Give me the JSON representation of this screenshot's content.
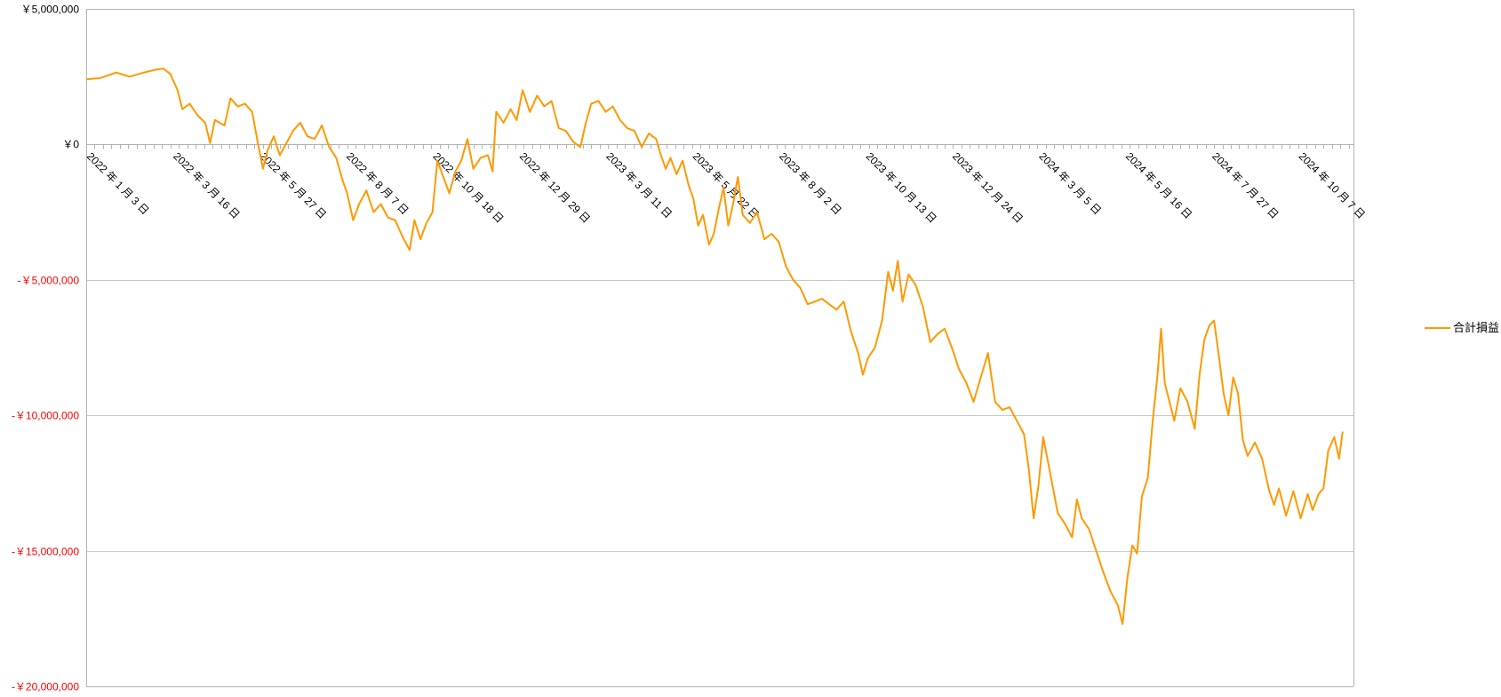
{
  "chart_data": {
    "type": "line",
    "title": "",
    "xlabel": "",
    "ylabel": "",
    "grid": true,
    "legend_position": "right",
    "ylim": [
      -20000000,
      5000000
    ],
    "xlim": [
      "2022-01-03",
      "2024-11-22"
    ],
    "y_ticks": [
      {
        "value": 5000000,
        "label": "￥5,000,000"
      },
      {
        "value": 0,
        "label": "￥0"
      },
      {
        "value": -5000000,
        "label": "-￥5,000,000"
      },
      {
        "value": -10000000,
        "label": "-￥10,000,000"
      },
      {
        "value": -15000000,
        "label": "-￥15,000,000"
      },
      {
        "value": -20000000,
        "label": "-￥20,000,000"
      }
    ],
    "x_ticks": [
      {
        "date": "2022-01-03",
        "label": "2022 年 1 月 3 日"
      },
      {
        "date": "2022-03-16",
        "label": "2022 年 3 月 16 日"
      },
      {
        "date": "2022-05-27",
        "label": "2022 年 5 月 27 日"
      },
      {
        "date": "2022-08-07",
        "label": "2022 年 8 月 7 日"
      },
      {
        "date": "2022-10-18",
        "label": "2022 年 10 月 18 日"
      },
      {
        "date": "2022-12-29",
        "label": "2022 年 12 月 29 日"
      },
      {
        "date": "2023-03-11",
        "label": "2023 年 3 月 11 日"
      },
      {
        "date": "2023-05-22",
        "label": "2023 年 5 月 22 日"
      },
      {
        "date": "2023-08-02",
        "label": "2023 年 8 月 2 日"
      },
      {
        "date": "2023-10-13",
        "label": "2023 年 10 月 13 日"
      },
      {
        "date": "2023-12-24",
        "label": "2023 年 12 月 24 日"
      },
      {
        "date": "2024-03-05",
        "label": "2024 年 3 月 5 日"
      },
      {
        "date": "2024-05-16",
        "label": "2024 年 5 月 16 日"
      },
      {
        "date": "2024-07-27",
        "label": "2024 年 7 月 27 日"
      },
      {
        "date": "2024-10-07",
        "label": "2024 年 10 月 7 日"
      }
    ],
    "series": [
      {
        "name": "合計損益",
        "color": "#FF9900",
        "points": [
          [
            "2022-01-03",
            2400000
          ],
          [
            "2022-01-15",
            2450000
          ],
          [
            "2022-01-28",
            2650000
          ],
          [
            "2022-02-08",
            2500000
          ],
          [
            "2022-02-20",
            2650000
          ],
          [
            "2022-03-01",
            2750000
          ],
          [
            "2022-03-08",
            2800000
          ],
          [
            "2022-03-14",
            2600000
          ],
          [
            "2022-03-20",
            2000000
          ],
          [
            "2022-03-24",
            1300000
          ],
          [
            "2022-03-30",
            1500000
          ],
          [
            "2022-04-06",
            1050000
          ],
          [
            "2022-04-12",
            800000
          ],
          [
            "2022-04-16",
            50000
          ],
          [
            "2022-04-20",
            900000
          ],
          [
            "2022-04-28",
            700000
          ],
          [
            "2022-05-03",
            1700000
          ],
          [
            "2022-05-09",
            1400000
          ],
          [
            "2022-05-15",
            1500000
          ],
          [
            "2022-05-21",
            1200000
          ],
          [
            "2022-05-26",
            0
          ],
          [
            "2022-05-30",
            -900000
          ],
          [
            "2022-06-03",
            -200000
          ],
          [
            "2022-06-08",
            300000
          ],
          [
            "2022-06-13",
            -400000
          ],
          [
            "2022-06-18",
            0
          ],
          [
            "2022-06-24",
            500000
          ],
          [
            "2022-06-30",
            800000
          ],
          [
            "2022-07-06",
            300000
          ],
          [
            "2022-07-12",
            200000
          ],
          [
            "2022-07-18",
            700000
          ],
          [
            "2022-07-24",
            -100000
          ],
          [
            "2022-07-30",
            -500000
          ],
          [
            "2022-08-04",
            -1300000
          ],
          [
            "2022-08-08",
            -1800000
          ],
          [
            "2022-08-13",
            -2800000
          ],
          [
            "2022-08-18",
            -2200000
          ],
          [
            "2022-08-24",
            -1700000
          ],
          [
            "2022-08-30",
            -2500000
          ],
          [
            "2022-09-05",
            -2200000
          ],
          [
            "2022-09-11",
            -2700000
          ],
          [
            "2022-09-17",
            -2800000
          ],
          [
            "2022-09-23",
            -3400000
          ],
          [
            "2022-09-29",
            -3900000
          ],
          [
            "2022-10-03",
            -2800000
          ],
          [
            "2022-10-08",
            -3500000
          ],
          [
            "2022-10-13",
            -2900000
          ],
          [
            "2022-10-18",
            -2500000
          ],
          [
            "2022-10-22",
            -600000
          ],
          [
            "2022-10-27",
            -1200000
          ],
          [
            "2022-11-01",
            -1800000
          ],
          [
            "2022-11-06",
            -1000000
          ],
          [
            "2022-11-11",
            -600000
          ],
          [
            "2022-11-16",
            200000
          ],
          [
            "2022-11-21",
            -900000
          ],
          [
            "2022-11-27",
            -500000
          ],
          [
            "2022-12-03",
            -400000
          ],
          [
            "2022-12-07",
            -1000000
          ],
          [
            "2022-12-10",
            1200000
          ],
          [
            "2022-12-16",
            800000
          ],
          [
            "2022-12-22",
            1300000
          ],
          [
            "2022-12-27",
            900000
          ],
          [
            "2023-01-01",
            2000000
          ],
          [
            "2023-01-07",
            1200000
          ],
          [
            "2023-01-13",
            1800000
          ],
          [
            "2023-01-19",
            1400000
          ],
          [
            "2023-01-25",
            1600000
          ],
          [
            "2023-01-31",
            600000
          ],
          [
            "2023-02-06",
            500000
          ],
          [
            "2023-02-12",
            100000
          ],
          [
            "2023-02-18",
            -100000
          ],
          [
            "2023-02-22",
            700000
          ],
          [
            "2023-02-27",
            1500000
          ],
          [
            "2023-03-05",
            1600000
          ],
          [
            "2023-03-11",
            1200000
          ],
          [
            "2023-03-17",
            1400000
          ],
          [
            "2023-03-23",
            900000
          ],
          [
            "2023-03-29",
            600000
          ],
          [
            "2023-04-04",
            500000
          ],
          [
            "2023-04-10",
            -100000
          ],
          [
            "2023-04-16",
            400000
          ],
          [
            "2023-04-22",
            200000
          ],
          [
            "2023-04-26",
            -400000
          ],
          [
            "2023-04-30",
            -900000
          ],
          [
            "2023-05-04",
            -500000
          ],
          [
            "2023-05-09",
            -1100000
          ],
          [
            "2023-05-14",
            -600000
          ],
          [
            "2023-05-19",
            -1500000
          ],
          [
            "2023-05-23",
            -2000000
          ],
          [
            "2023-05-27",
            -3000000
          ],
          [
            "2023-05-31",
            -2600000
          ],
          [
            "2023-06-05",
            -3700000
          ],
          [
            "2023-06-09",
            -3300000
          ],
          [
            "2023-06-13",
            -2400000
          ],
          [
            "2023-06-17",
            -1600000
          ],
          [
            "2023-06-21",
            -3000000
          ],
          [
            "2023-06-25",
            -2200000
          ],
          [
            "2023-06-29",
            -1200000
          ],
          [
            "2023-07-03",
            -2600000
          ],
          [
            "2023-07-09",
            -2900000
          ],
          [
            "2023-07-15",
            -2500000
          ],
          [
            "2023-07-21",
            -3500000
          ],
          [
            "2023-07-27",
            -3300000
          ],
          [
            "2023-08-02",
            -3600000
          ],
          [
            "2023-08-08",
            -4500000
          ],
          [
            "2023-08-14",
            -5000000
          ],
          [
            "2023-08-20",
            -5300000
          ],
          [
            "2023-08-26",
            -5900000
          ],
          [
            "2023-09-01",
            -5800000
          ],
          [
            "2023-09-07",
            -5700000
          ],
          [
            "2023-09-13",
            -5900000
          ],
          [
            "2023-09-19",
            -6100000
          ],
          [
            "2023-09-25",
            -5800000
          ],
          [
            "2023-10-01",
            -6900000
          ],
          [
            "2023-10-07",
            -7700000
          ],
          [
            "2023-10-11",
            -8500000
          ],
          [
            "2023-10-15",
            -7900000
          ],
          [
            "2023-10-21",
            -7500000
          ],
          [
            "2023-10-27",
            -6500000
          ],
          [
            "2023-11-01",
            -4700000
          ],
          [
            "2023-11-05",
            -5400000
          ],
          [
            "2023-11-09",
            -4300000
          ],
          [
            "2023-11-13",
            -5800000
          ],
          [
            "2023-11-18",
            -4800000
          ],
          [
            "2023-11-24",
            -5200000
          ],
          [
            "2023-11-30",
            -6000000
          ],
          [
            "2023-12-06",
            -7300000
          ],
          [
            "2023-12-12",
            -7000000
          ],
          [
            "2023-12-18",
            -6800000
          ],
          [
            "2023-12-24",
            -7500000
          ],
          [
            "2023-12-30",
            -8300000
          ],
          [
            "2024-01-05",
            -8800000
          ],
          [
            "2024-01-11",
            -9500000
          ],
          [
            "2024-01-17",
            -8600000
          ],
          [
            "2024-01-23",
            -7700000
          ],
          [
            "2024-01-29",
            -9500000
          ],
          [
            "2024-02-04",
            -9800000
          ],
          [
            "2024-02-10",
            -9700000
          ],
          [
            "2024-02-16",
            -10200000
          ],
          [
            "2024-02-22",
            -10700000
          ],
          [
            "2024-02-26",
            -12000000
          ],
          [
            "2024-03-01",
            -13800000
          ],
          [
            "2024-03-05",
            -12600000
          ],
          [
            "2024-03-09",
            -10800000
          ],
          [
            "2024-03-15",
            -12200000
          ],
          [
            "2024-03-21",
            -13600000
          ],
          [
            "2024-03-27",
            -14000000
          ],
          [
            "2024-04-02",
            -14500000
          ],
          [
            "2024-04-06",
            -13100000
          ],
          [
            "2024-04-10",
            -13800000
          ],
          [
            "2024-04-16",
            -14200000
          ],
          [
            "2024-04-22",
            -15000000
          ],
          [
            "2024-04-28",
            -15800000
          ],
          [
            "2024-05-04",
            -16500000
          ],
          [
            "2024-05-10",
            -17000000
          ],
          [
            "2024-05-14",
            -17700000
          ],
          [
            "2024-05-18",
            -16000000
          ],
          [
            "2024-05-22",
            -14800000
          ],
          [
            "2024-05-26",
            -15100000
          ],
          [
            "2024-05-30",
            -13000000
          ],
          [
            "2024-06-04",
            -12300000
          ],
          [
            "2024-06-08",
            -10200000
          ],
          [
            "2024-06-12",
            -8500000
          ],
          [
            "2024-06-15",
            -6800000
          ],
          [
            "2024-06-18",
            -8800000
          ],
          [
            "2024-06-22",
            -9500000
          ],
          [
            "2024-06-26",
            -10200000
          ],
          [
            "2024-07-01",
            -9000000
          ],
          [
            "2024-07-07",
            -9500000
          ],
          [
            "2024-07-13",
            -10500000
          ],
          [
            "2024-07-17",
            -8500000
          ],
          [
            "2024-07-21",
            -7200000
          ],
          [
            "2024-07-25",
            -6700000
          ],
          [
            "2024-07-29",
            -6500000
          ],
          [
            "2024-08-02",
            -7800000
          ],
          [
            "2024-08-06",
            -9200000
          ],
          [
            "2024-08-10",
            -10000000
          ],
          [
            "2024-08-14",
            -8600000
          ],
          [
            "2024-08-18",
            -9200000
          ],
          [
            "2024-08-22",
            -10900000
          ],
          [
            "2024-08-26",
            -11500000
          ],
          [
            "2024-09-01",
            -11000000
          ],
          [
            "2024-09-07",
            -11600000
          ],
          [
            "2024-09-13",
            -12800000
          ],
          [
            "2024-09-17",
            -13300000
          ],
          [
            "2024-09-21",
            -12700000
          ],
          [
            "2024-09-27",
            -13700000
          ],
          [
            "2024-10-03",
            -12800000
          ],
          [
            "2024-10-09",
            -13800000
          ],
          [
            "2024-10-15",
            -12900000
          ],
          [
            "2024-10-19",
            -13500000
          ],
          [
            "2024-10-24",
            -12900000
          ],
          [
            "2024-10-28",
            -12700000
          ],
          [
            "2024-11-01",
            -11300000
          ],
          [
            "2024-11-06",
            -10800000
          ],
          [
            "2024-11-10",
            -11600000
          ],
          [
            "2024-11-13",
            -10600000
          ]
        ]
      }
    ]
  },
  "legend": {
    "items": [
      {
        "label": "合計損益",
        "color": "#FF9900"
      }
    ]
  },
  "colors": {
    "axis": "#b3b3b3",
    "grid": "#c9c9c9",
    "negative_label": "#FF0000",
    "positive_label": "#000000"
  }
}
